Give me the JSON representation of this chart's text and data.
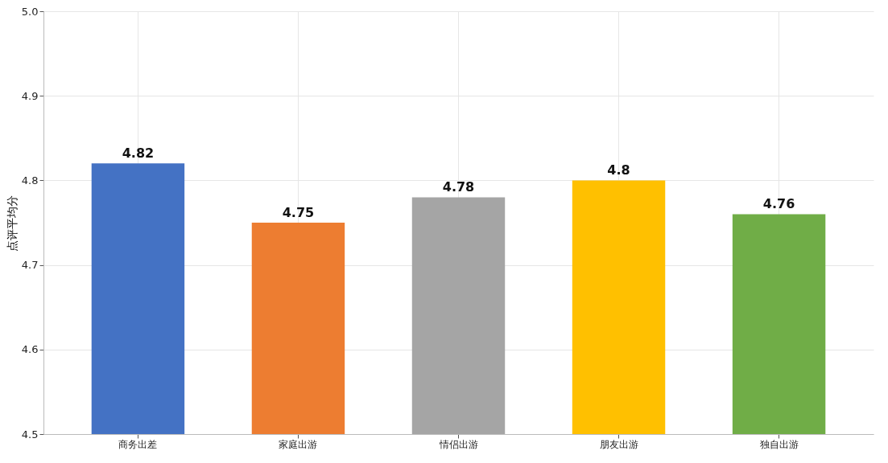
{
  "chart_data": {
    "type": "bar",
    "ylabel": "点评平均分",
    "categories": [
      "商务出差",
      "家庭出游",
      "情侣出游",
      "朋友出游",
      "独自出游"
    ],
    "values": [
      4.82,
      4.75,
      4.78,
      4.8,
      4.76
    ],
    "colors": [
      "#4472c4",
      "#ed7d31",
      "#a5a5a5",
      "#ffc000",
      "#70ad47"
    ],
    "ylim": [
      4.5,
      5.0
    ],
    "yticks": [
      4.5,
      4.6,
      4.7,
      4.8,
      4.9,
      {
        "value": 5.0,
        "label": "5.0"
      }
    ],
    "grid": true,
    "data_labels": true
  }
}
